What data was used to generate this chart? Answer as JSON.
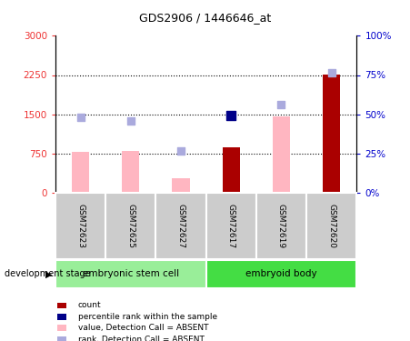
{
  "title": "GDS2906 / 1446646_at",
  "samples": [
    "GSM72623",
    "GSM72625",
    "GSM72627",
    "GSM72617",
    "GSM72619",
    "GSM72620"
  ],
  "bar_values": [
    780,
    790,
    280,
    870,
    1460,
    2260
  ],
  "bar_colors": [
    "#FFB6C1",
    "#FFB6C1",
    "#FFB6C1",
    "#AA0000",
    "#FFB6C1",
    "#AA0000"
  ],
  "rank_dots_y": [
    1440,
    1370,
    800,
    1480,
    1680,
    2290
  ],
  "rank_dot_colors": [
    "#AAAADD",
    "#AAAADD",
    "#AAAADD",
    "#000088",
    "#AAAADD",
    "#AAAADD"
  ],
  "rank_dot_sizes": [
    40,
    40,
    40,
    60,
    40,
    40
  ],
  "left_ylim": [
    0,
    3000
  ],
  "left_yticks": [
    0,
    750,
    1500,
    2250,
    3000
  ],
  "left_yticklabels": [
    "0",
    "750",
    "1500",
    "2250",
    "3000"
  ],
  "right_ylim": [
    0,
    100
  ],
  "right_yticks": [
    0,
    25,
    50,
    75,
    100
  ],
  "right_yticklabels": [
    "0%",
    "25%",
    "50%",
    "75%",
    "100%"
  ],
  "hlines": [
    750,
    1500,
    2250
  ],
  "left_tick_color": "#EE3333",
  "right_tick_color": "#0000CC",
  "bar_width": 0.35,
  "group1_name": "embryonic stem cell",
  "group2_name": "embryoid body",
  "group1_color": "#99EE99",
  "group2_color": "#44DD44",
  "dev_stage_label": "development stage",
  "legend_items": [
    {
      "label": "count",
      "color": "#AA0000"
    },
    {
      "label": "percentile rank within the sample",
      "color": "#000088"
    },
    {
      "label": "value, Detection Call = ABSENT",
      "color": "#FFB6C1"
    },
    {
      "label": "rank, Detection Call = ABSENT",
      "color": "#AAAADD"
    }
  ],
  "fig_width": 4.51,
  "fig_height": 3.75,
  "dpi": 100
}
